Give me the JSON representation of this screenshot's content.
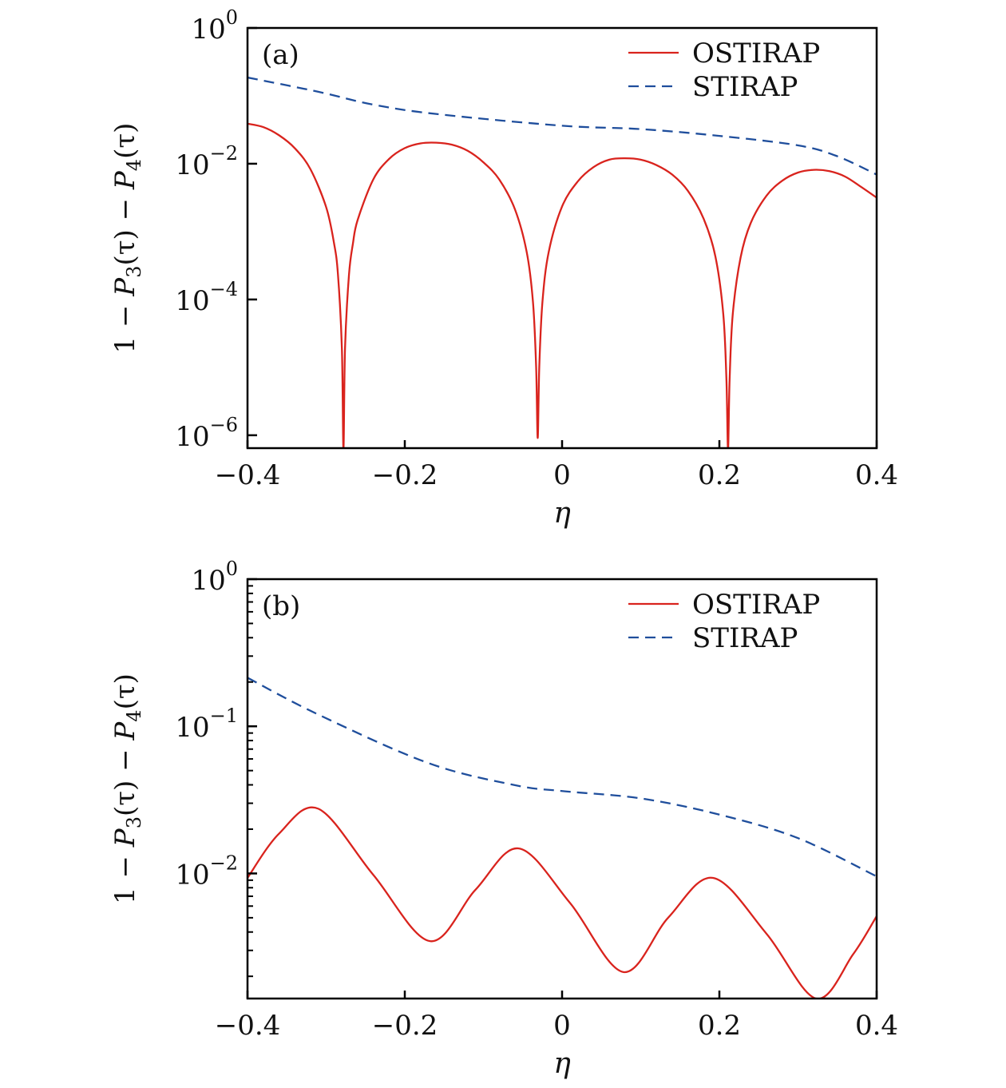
{
  "colors": {
    "ostirap": "#d9231d",
    "stirap": "#1f4e9c",
    "axis": "#000000"
  },
  "chart_data": [
    {
      "type": "line",
      "panel_label": "(a)",
      "xlabel": "η",
      "ylabel": {
        "prefix": "1 − ",
        "p3": "P",
        "sub3": "3",
        "mid": "(τ) − ",
        "p4": "P",
        "sub4": "4",
        "suffix": "(τ)"
      },
      "xlim": [
        -0.4,
        0.4
      ],
      "ylim_log10": [
        -6.19,
        0
      ],
      "yscale": "log",
      "grid": false,
      "legend_position": "top-right",
      "minor_ticks": false,
      "x_ticks": [
        {
          "v": -0.4,
          "label": "−0.4"
        },
        {
          "v": -0.2,
          "label": "−0.2"
        },
        {
          "v": 0,
          "label": "0"
        },
        {
          "v": 0.2,
          "label": "0.2"
        },
        {
          "v": 0.4,
          "label": "0.4"
        }
      ],
      "y_ticks": [
        {
          "exp": 0,
          "base": "10",
          "sup": "0"
        },
        {
          "exp": -2,
          "base": "10",
          "sup": "−2"
        },
        {
          "exp": -4,
          "base": "10",
          "sup": "−4"
        },
        {
          "exp": -6,
          "base": "10",
          "sup": "−6"
        }
      ],
      "series": [
        {
          "name": "OSTIRAP",
          "style": "solid",
          "x": [
            -0.4,
            -0.38,
            -0.36,
            -0.34,
            -0.32,
            -0.3,
            -0.29,
            -0.285,
            -0.28,
            -0.278,
            -0.276,
            -0.271,
            -0.266,
            -0.26,
            -0.24,
            -0.22,
            -0.2,
            -0.18,
            -0.16,
            -0.14,
            -0.12,
            -0.1,
            -0.08,
            -0.06,
            -0.045,
            -0.037,
            -0.033,
            -0.031,
            -0.029,
            -0.025,
            -0.017,
            0.0,
            0.02,
            0.04,
            0.06,
            0.08,
            0.1,
            0.12,
            0.14,
            0.16,
            0.18,
            0.195,
            0.205,
            0.209,
            0.211,
            0.213,
            0.217,
            0.227,
            0.24,
            0.26,
            0.28,
            0.3,
            0.32,
            0.34,
            0.36,
            0.38,
            0.4
          ],
          "y_log10": [
            -1.41,
            -1.46,
            -1.58,
            -1.77,
            -2.08,
            -2.64,
            -3.17,
            -3.63,
            -4.72,
            -6.2,
            -4.72,
            -3.64,
            -3.18,
            -2.83,
            -2.23,
            -1.93,
            -1.77,
            -1.7,
            -1.69,
            -1.72,
            -1.81,
            -1.98,
            -2.23,
            -2.67,
            -3.3,
            -4.04,
            -4.99,
            -6.04,
            -4.99,
            -4.04,
            -3.3,
            -2.63,
            -2.26,
            -2.05,
            -1.94,
            -1.92,
            -1.94,
            -2.02,
            -2.16,
            -2.4,
            -2.81,
            -3.37,
            -4.22,
            -5.19,
            -6.2,
            -5.19,
            -4.22,
            -3.38,
            -2.87,
            -2.47,
            -2.25,
            -2.13,
            -2.09,
            -2.11,
            -2.19,
            -2.34,
            -2.5
          ]
        },
        {
          "name": "STIRAP",
          "style": "dashed",
          "x": [
            -0.4,
            -0.31,
            -0.24,
            -0.158,
            0.0,
            0.1,
            0.2,
            0.3,
            0.35,
            0.4
          ],
          "y_log10": [
            -0.73,
            -0.94,
            -1.13,
            -1.27,
            -1.44,
            -1.49,
            -1.59,
            -1.73,
            -1.89,
            -2.16
          ]
        }
      ]
    },
    {
      "type": "line",
      "panel_label": "(b)",
      "xlabel": "η",
      "ylabel": {
        "prefix": "1 − ",
        "p3": "P",
        "sub3": "3",
        "mid": "(τ) − ",
        "p4": "P",
        "sub4": "4",
        "suffix": "(τ)"
      },
      "xlim": [
        -0.4,
        0.4
      ],
      "ylim_log10": [
        -2.85,
        0
      ],
      "yscale": "log",
      "grid": false,
      "legend_position": "top-right",
      "minor_ticks": true,
      "x_ticks": [
        {
          "v": -0.4,
          "label": "−0.4"
        },
        {
          "v": -0.2,
          "label": "−0.2"
        },
        {
          "v": 0,
          "label": "0"
        },
        {
          "v": 0.2,
          "label": "0.2"
        },
        {
          "v": 0.4,
          "label": "0.4"
        }
      ],
      "y_ticks": [
        {
          "exp": 0,
          "base": "10",
          "sup": "0"
        },
        {
          "exp": -1,
          "base": "10",
          "sup": "−1"
        },
        {
          "exp": -2,
          "base": "10",
          "sup": "−2"
        }
      ],
      "series": [
        {
          "name": "OSTIRAP",
          "style": "solid",
          "x": [
            -0.4,
            -0.36,
            -0.31,
            -0.24,
            -0.168,
            -0.11,
            -0.055,
            0.01,
            0.078,
            0.135,
            0.192,
            0.26,
            0.323,
            0.37,
            0.4
          ],
          "y_log10": [
            -2.03,
            -1.73,
            -1.56,
            -2.01,
            -2.46,
            -2.11,
            -1.83,
            -2.2,
            -2.67,
            -2.3,
            -2.03,
            -2.41,
            -2.85,
            -2.55,
            -2.29
          ]
        },
        {
          "name": "STIRAP",
          "style": "dashed",
          "x": [
            -0.4,
            -0.31,
            -0.17,
            -0.06,
            0.0,
            0.1,
            0.2,
            0.3,
            0.4
          ],
          "y_log10": [
            -0.67,
            -0.92,
            -1.25,
            -1.4,
            -1.44,
            -1.49,
            -1.6,
            -1.76,
            -2.02
          ]
        }
      ]
    }
  ]
}
